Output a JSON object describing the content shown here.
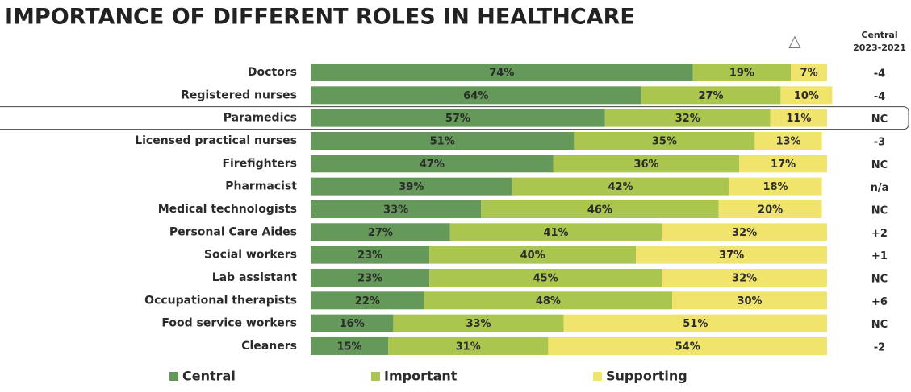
{
  "chart_data": {
    "type": "stacked_bar_horizontal",
    "title": "IMPORTANCE OF DIFFERENT ROLES IN HEALTHCARE",
    "categories": [
      "Doctors",
      "Registered nurses",
      "Paramedics",
      "Licensed practical nurses",
      "Firefighters",
      "Pharmacist",
      "Medical technologists",
      "Personal Care Aides",
      "Social workers",
      "Lab assistant",
      "Occupational therapists",
      "Food service workers",
      "Cleaners"
    ],
    "series": [
      {
        "name": "Central",
        "color": "#64995a",
        "values": [
          74,
          64,
          57,
          51,
          47,
          39,
          33,
          27,
          23,
          23,
          22,
          16,
          15
        ],
        "value_labels": [
          "74%",
          "64%",
          "57%",
          "51%",
          "47%",
          "39%",
          "33%",
          "27%",
          "23%",
          "23%",
          "22%",
          "16%",
          "15%"
        ]
      },
      {
        "name": "Important",
        "color": "#aac64f",
        "values": [
          19,
          27,
          32,
          35,
          36,
          42,
          46,
          41,
          40,
          45,
          48,
          33,
          31
        ],
        "value_labels": [
          "19%",
          "27%",
          "32%",
          "35%",
          "36%",
          "42%",
          "46%",
          "41%",
          "40%",
          "45%",
          "48%",
          "33%",
          "31%"
        ]
      },
      {
        "name": "Supporting",
        "color": "#f1e46c",
        "values": [
          7,
          10,
          11,
          13,
          17,
          18,
          20,
          32,
          37,
          32,
          30,
          51,
          54
        ],
        "value_labels": [
          "7%",
          "10%",
          "11%",
          "13%",
          "17%",
          "18%",
          "20%",
          "32%",
          "37%",
          "32%",
          "30%",
          "51%",
          "54%"
        ]
      }
    ],
    "xlim": [
      0,
      100
    ],
    "change_symbol": "△",
    "change_header": [
      "Central",
      "2023-2021"
    ],
    "change": [
      "-4",
      "-4",
      "NC",
      "-3",
      "NC",
      "n/a",
      "NC",
      "+2",
      "+1",
      "NC",
      "+6",
      "NC",
      "-2"
    ],
    "highlight_category": "Paramedics",
    "legend": "bottom"
  }
}
